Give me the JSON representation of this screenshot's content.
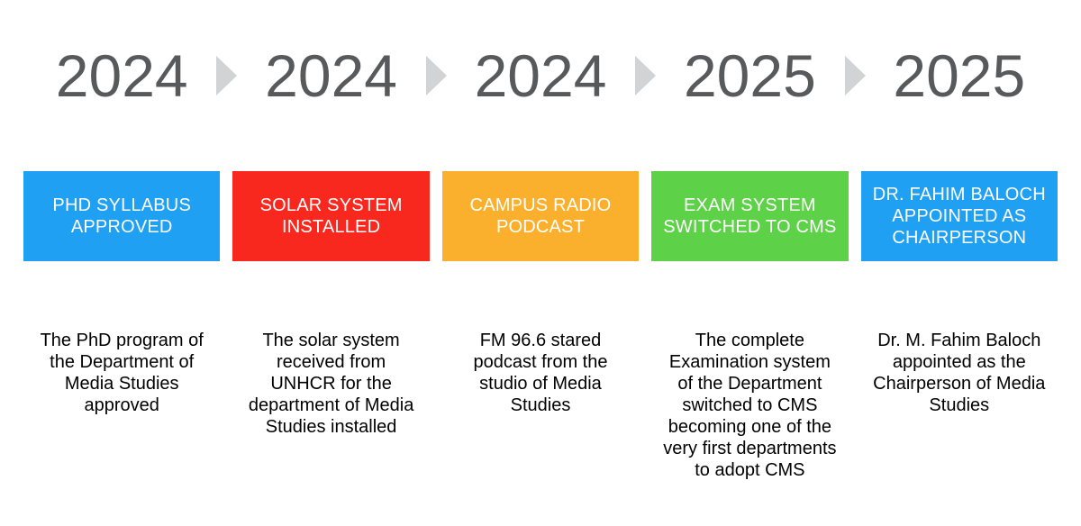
{
  "colors": {
    "background": "#FFFFFF",
    "year_text": "#58595B",
    "arrow": "#D1D3D4",
    "box_text": "#FFFFFF",
    "description_text": "#000000",
    "blue": "#1FA0F2",
    "red": "#F9281E",
    "orange": "#FAB02C",
    "green": "#5DD147"
  },
  "timeline": {
    "arrow_icon": "right-triangle",
    "items": [
      {
        "year": "2024",
        "title": "PHD SYLLABUS APPROVED",
        "color": "#1FA0F2",
        "description": "The PhD program of the Department of Media Studies approved"
      },
      {
        "year": "2024",
        "title": "SOLAR SYSTEM INSTALLED",
        "color": "#F9281E",
        "description": "The solar system received from UNHCR for the department of Media Studies installed"
      },
      {
        "year": "2024",
        "title": "CAMPUS RADIO PODCAST",
        "color": "#FAB02C",
        "description": "FM 96.6 stared podcast from the studio of Media Studies"
      },
      {
        "year": "2025",
        "title": "EXAM SYSTEM SWITCHED TO CMS",
        "color": "#5DD147",
        "description": "The complete Examination system of the Department switched to CMS becoming one of the very first departments to adopt CMS"
      },
      {
        "year": "2025",
        "title": "DR. FAHIM BALOCH APPOINTED AS CHAIRPERSON",
        "color": "#1FA0F2",
        "description": "Dr. M. Fahim Baloch appointed as the Chairperson of Media Studies"
      }
    ]
  }
}
